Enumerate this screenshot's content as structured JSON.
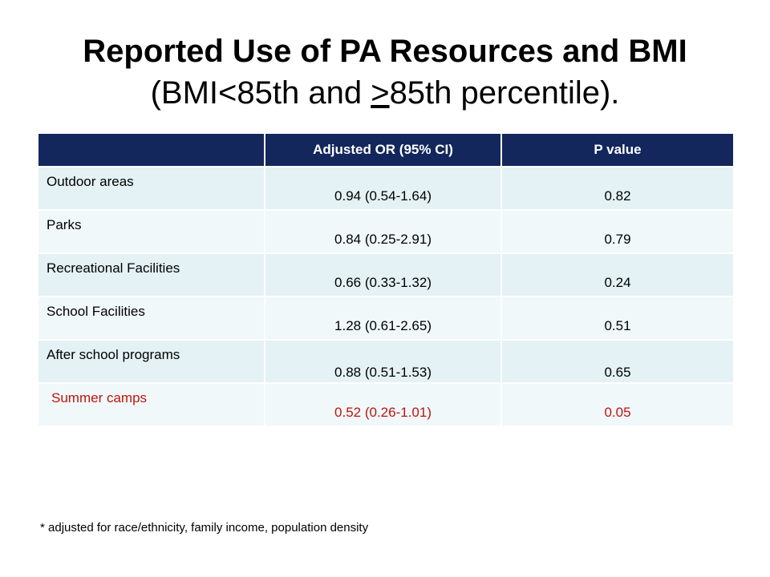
{
  "title": {
    "line1": "Reported Use of PA Resources and BMI",
    "line2_prefix": "(BMI<85th and ",
    "line2_underlined": ">",
    "line2_suffix": "85th percentile)."
  },
  "table": {
    "headers": [
      "",
      "Adjusted OR (95% CI)",
      "P value"
    ],
    "rows": [
      {
        "label": "Outdoor areas",
        "or": "0.94 (0.54-1.64)",
        "p": "0.82"
      },
      {
        "label": "Parks",
        "or": "0.84 (0.25-2.91)",
        "p": "0.79"
      },
      {
        "label": "Recreational Facilities",
        "or": "0.66 (0.33-1.32)",
        "p": "0.24"
      },
      {
        "label": "School Facilities",
        "or": "1.28 (0.61-2.65)",
        "p": "0.51"
      },
      {
        "label": "After school programs",
        "or": "0.88 (0.51-1.53)",
        "p": "0.65"
      },
      {
        "label": "Summer camps",
        "or": "0.52 (0.26-1.01)",
        "p": "0.05"
      }
    ],
    "header_color": "#13275c",
    "highlight_color": "#c0140c"
  },
  "footnote": "* adjusted for race/ethnicity, family income, population density"
}
